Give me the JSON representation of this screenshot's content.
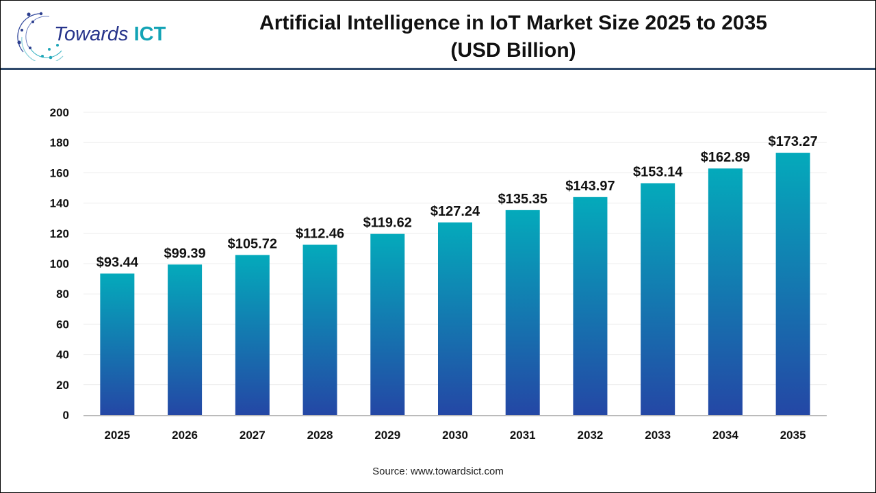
{
  "logo": {
    "text_main": "Towards",
    "text_accent": "ICT"
  },
  "title_line1": "Artificial Intelligence in IoT Market Size 2025 to 2035",
  "title_line2": "(USD Billion)",
  "source": "Source: www.towardsict.com",
  "colors": {
    "bar_top": "#04aabb",
    "bar_bottom": "#2447a5",
    "header_line": "#2f4a6b",
    "logo_blue": "#27348b",
    "logo_teal": "#13a3b5"
  },
  "chart_data": {
    "type": "bar",
    "title": "Artificial Intelligence in IoT Market Size 2025 to 2035 (USD Billion)",
    "categories": [
      "2025",
      "2026",
      "2027",
      "2028",
      "2029",
      "2030",
      "2031",
      "2032",
      "2033",
      "2034",
      "2035"
    ],
    "values": [
      93.44,
      99.39,
      105.72,
      112.46,
      119.62,
      127.24,
      135.35,
      143.97,
      153.14,
      162.89,
      173.27
    ],
    "data_labels": [
      "$93.44",
      "$99.39",
      "$105.72",
      "$112.46",
      "$119.62",
      "$127.24",
      "$135.35",
      "$143.97",
      "$153.14",
      "$162.89",
      "$173.27"
    ],
    "yticks": [
      0,
      20,
      40,
      60,
      80,
      100,
      120,
      140,
      160,
      180,
      200
    ],
    "ylim": [
      0,
      200
    ],
    "xlabel": "",
    "ylabel": "",
    "grid": true,
    "legend": "none"
  }
}
